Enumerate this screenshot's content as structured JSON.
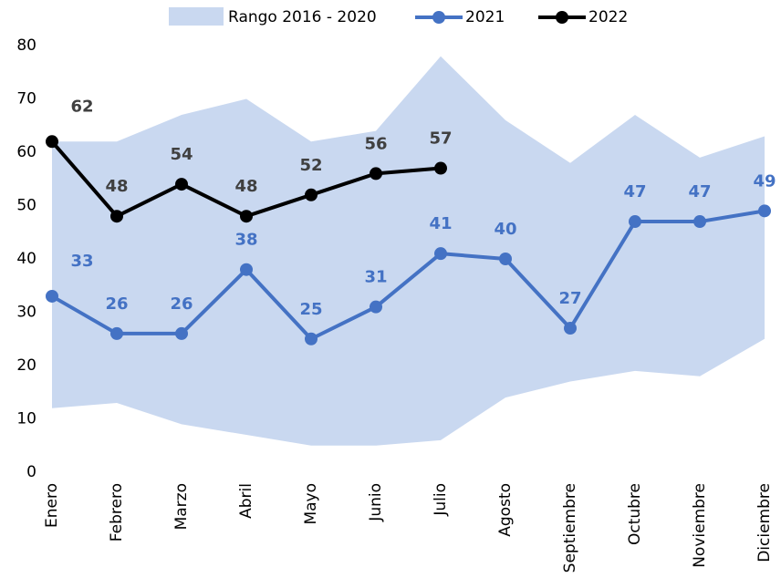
{
  "chart_data": {
    "type": "line",
    "categories": [
      "Enero",
      "Febrero",
      "Marzo",
      "Abril",
      "Mayo",
      "Junio",
      "Julio",
      "Agosto",
      "Septiembre",
      "Octubre",
      "Noviembre",
      "Diciembre"
    ],
    "range": {
      "name": "Rango 2016 - 2020",
      "color": "#c9d8f0",
      "high": [
        62,
        62,
        67,
        70,
        62,
        64,
        78,
        66,
        58,
        67,
        59,
        63
      ],
      "low": [
        12,
        13,
        9,
        7,
        5,
        5,
        6,
        14,
        17,
        19,
        18,
        25
      ]
    },
    "series": [
      {
        "name": "2021",
        "color": "#4472c4",
        "label_color": "#4472c4",
        "values": [
          33,
          26,
          26,
          38,
          25,
          31,
          41,
          40,
          27,
          47,
          47,
          49
        ]
      },
      {
        "name": "2022",
        "color": "#000000",
        "label_color": "#404040",
        "values": [
          62,
          48,
          54,
          48,
          52,
          56,
          57,
          null,
          null,
          null,
          null,
          null
        ]
      }
    ],
    "ylim": [
      0,
      80
    ],
    "yticks": [
      0,
      10,
      20,
      30,
      40,
      50,
      60,
      70,
      80
    ],
    "grid": false,
    "legend": "top"
  }
}
